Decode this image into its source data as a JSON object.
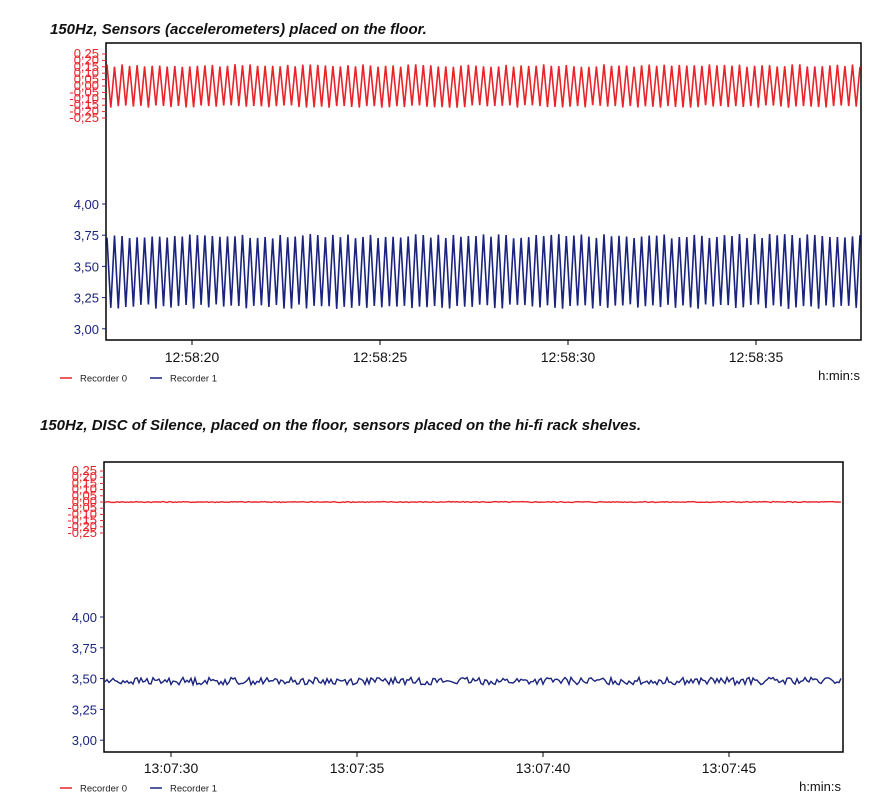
{
  "colors": {
    "recorder0": "#e8242a",
    "recorder1": "#1a237e",
    "frame": "#000000"
  },
  "chart_data": [
    {
      "type": "line",
      "title": "150Hz, Sensors (accelerometers) placed on the floor.",
      "xlabel": "h:min:s",
      "x_ticks": [
        "12:58:20",
        "12:58:25",
        "12:58:30",
        "12:58:35"
      ],
      "y_ticks_red": [
        "0,25",
        "0,20",
        "0,15",
        "0,10",
        "0,05",
        "0,00",
        "-0,05",
        "-0,10",
        "-0,15",
        "-0,20",
        "-0,25"
      ],
      "y_ticks_blue": [
        "4,00",
        "3,75",
        "3,50",
        "3,25",
        "3,00"
      ],
      "series": [
        {
          "name": "Recorder 0",
          "color": "#e8242a",
          "center": 0.0,
          "amplitude": 0.17,
          "axis": "red"
        },
        {
          "name": "Recorder 1",
          "color": "#1a237e",
          "center": 3.46,
          "amplitude": 0.3,
          "axis": "blue"
        }
      ],
      "legend": [
        {
          "label": "Recorder 0"
        },
        {
          "label": "Recorder 1"
        }
      ],
      "grid": false,
      "legend_position": "bottom-left"
    },
    {
      "type": "line",
      "title": "150Hz, DISC of Silence, placed on the floor, sensors placed on the hi-fi rack shelves.",
      "xlabel": "h:min:s",
      "x_ticks": [
        "13:07:30",
        "13:07:35",
        "13:07:40",
        "13:07:45"
      ],
      "y_ticks_red": [
        "0,25",
        "0,20",
        "0,15",
        "0,10",
        "0,05",
        "0,00",
        "-0,05",
        "-0,10",
        "-0,15",
        "-0,20",
        "-0,25"
      ],
      "y_ticks_blue": [
        "4,00",
        "3,75",
        "3,50",
        "3,25",
        "3,00"
      ],
      "series": [
        {
          "name": "Recorder 0",
          "color": "#e8242a",
          "center": 0.0,
          "amplitude": 0.004,
          "axis": "red"
        },
        {
          "name": "Recorder 1",
          "color": "#1a237e",
          "center": 3.48,
          "amplitude": 0.03,
          "axis": "blue"
        }
      ],
      "legend": [
        {
          "label": "Recorder 0"
        },
        {
          "label": "Recorder 1"
        }
      ],
      "grid": false,
      "legend_position": "bottom-left"
    }
  ]
}
